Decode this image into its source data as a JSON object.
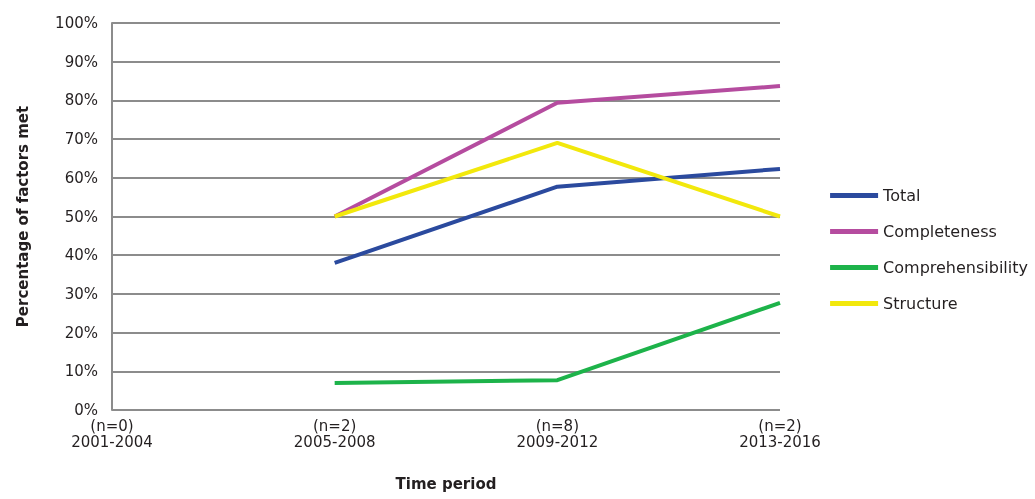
{
  "chart_data": {
    "type": "line",
    "xlabel": "Time period",
    "ylabel": "Percentage of factors met",
    "categories": [
      "(n=0)\n2001-2004",
      "(n=2)\n2005-2008",
      "(n=8)\n2009-2012",
      "(n=2)\n2013-2016"
    ],
    "series": [
      {
        "name": "Total",
        "color": "#2b4a9e",
        "values": [
          null,
          38,
          57.7,
          62.3
        ]
      },
      {
        "name": "Completeness",
        "color": "#b54c9f",
        "values": [
          null,
          50,
          79.4,
          83.7
        ]
      },
      {
        "name": "Comprehensibility",
        "color": "#1db34a",
        "values": [
          null,
          7,
          7.7,
          27.7
        ]
      },
      {
        "name": "Structure",
        "color": "#f2e80c",
        "values": [
          null,
          50,
          69,
          50
        ]
      }
    ],
    "ylim": [
      0,
      100
    ],
    "yticks": [
      {
        "value": 0,
        "label": "0%"
      },
      {
        "value": 10,
        "label": "10%"
      },
      {
        "value": 20,
        "label": "20%"
      },
      {
        "value": 30,
        "label": "30%"
      },
      {
        "value": 40,
        "label": "40%"
      },
      {
        "value": 50,
        "label": "50%"
      },
      {
        "value": 60,
        "label": "60%"
      },
      {
        "value": 70,
        "label": "70%"
      },
      {
        "value": 80,
        "label": "80%"
      },
      {
        "value": 90,
        "label": "90%"
      },
      {
        "value": 100,
        "label": "100%"
      }
    ],
    "grid": "y",
    "legend": "right",
    "marker": "none",
    "line_style": "solid"
  }
}
